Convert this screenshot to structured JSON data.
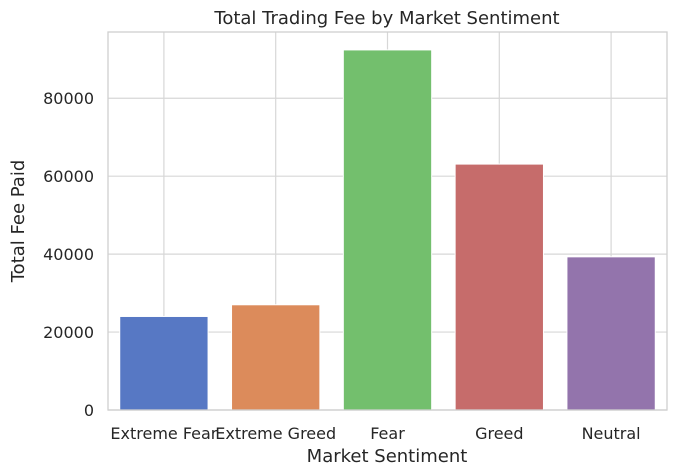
{
  "chart_data": {
    "type": "bar",
    "title": "Total Trading Fee by Market Sentiment",
    "xlabel": "Market Sentiment",
    "ylabel": "Total Fee Paid",
    "categories": [
      "Extreme Fear",
      "Extreme Greed",
      "Fear",
      "Greed",
      "Neutral"
    ],
    "values": [
      24000,
      27000,
      92400,
      63100,
      39300
    ],
    "colors": [
      "#5778c4",
      "#dc8b5b",
      "#73bf6d",
      "#c66c6b",
      "#9374ac"
    ],
    "y_ticks": [
      0,
      20000,
      40000,
      60000,
      80000
    ],
    "ylim": [
      0,
      97000
    ],
    "grid": true
  }
}
